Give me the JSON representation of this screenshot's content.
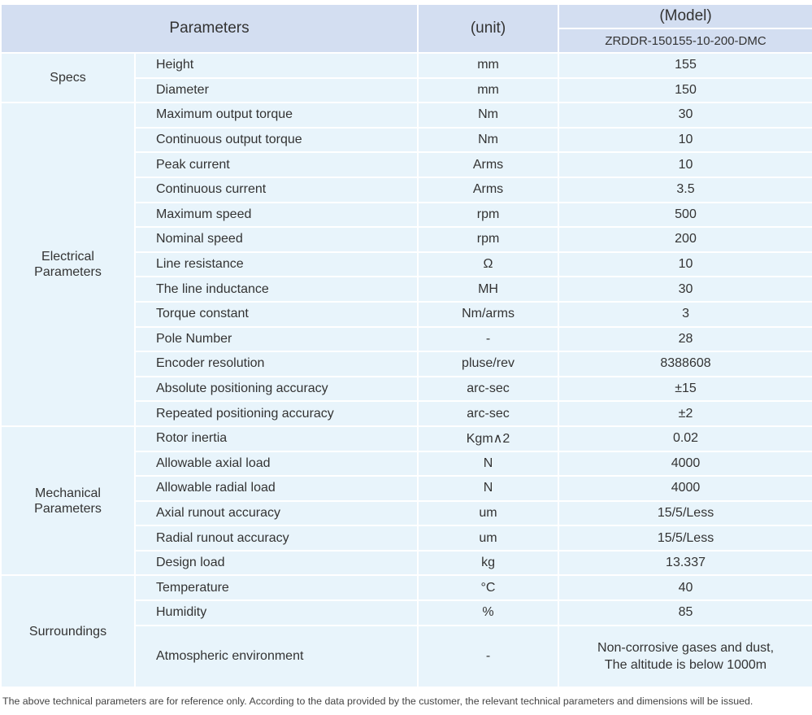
{
  "header": {
    "parameters": "Parameters",
    "unit": "(unit)",
    "model": "(Model)",
    "model_name": "ZRDDR-150155-10-200-DMC"
  },
  "groups": [
    {
      "name": "Specs",
      "rows": [
        {
          "parameter": "Height",
          "unit": "mm",
          "value": "155"
        },
        {
          "parameter": "Diameter",
          "unit": "mm",
          "value": "150"
        }
      ]
    },
    {
      "name": "Electrical Parameters",
      "rows": [
        {
          "parameter": "Maximum output torque",
          "unit": "Nm",
          "value": "30"
        },
        {
          "parameter": "Continuous output torque",
          "unit": "Nm",
          "value": "10"
        },
        {
          "parameter": "Peak current",
          "unit": "Arms",
          "value": "10"
        },
        {
          "parameter": "Continuous current",
          "unit": "Arms",
          "value": "3.5"
        },
        {
          "parameter": "Maximum speed",
          "unit": "rpm",
          "value": "500"
        },
        {
          "parameter": "Nominal speed",
          "unit": "rpm",
          "value": "200"
        },
        {
          "parameter": "Line resistance",
          "unit": "Ω",
          "value": "10"
        },
        {
          "parameter": "The line inductance",
          "unit": "MH",
          "value": "30"
        },
        {
          "parameter": "Torque constant",
          "unit": "Nm/arms",
          "value": "3"
        },
        {
          "parameter": "Pole Number",
          "unit": "-",
          "value": "28"
        },
        {
          "parameter": "Encoder resolution",
          "unit": "pluse/rev",
          "value": "8388608"
        },
        {
          "parameter": "Absolute positioning accuracy",
          "unit": "arc-sec",
          "value": "±15"
        },
        {
          "parameter": "Repeated positioning accuracy",
          "unit": "arc-sec",
          "value": "±2"
        }
      ]
    },
    {
      "name": "Mechanical Parameters",
      "rows": [
        {
          "parameter": "Rotor inertia",
          "unit": "Kgm∧2",
          "value": "0.02"
        },
        {
          "parameter": "Allowable axial load",
          "unit": "N",
          "value": "4000"
        },
        {
          "parameter": "Allowable radial load",
          "unit": "N",
          "value": "4000"
        },
        {
          "parameter": "Axial runout accuracy",
          "unit": "um",
          "value": "15/5/Less"
        },
        {
          "parameter": "Radial runout accuracy",
          "unit": "um",
          "value": "15/5/Less"
        },
        {
          "parameter": "Design load",
          "unit": "kg",
          "value": "13.337"
        }
      ]
    },
    {
      "name": "Surroundings",
      "rows": [
        {
          "parameter": "Temperature",
          "unit": "°C",
          "value": "40"
        },
        {
          "parameter": "Humidity",
          "unit": "%",
          "value": "85"
        },
        {
          "parameter": "Atmospheric environment",
          "unit": "-",
          "value": "Non-corrosive gases and dust,\nThe altitude is below 1000m"
        }
      ]
    }
  ],
  "footnote": "The above technical parameters are for reference only. According to the data provided by the customer, the relevant technical parameters and dimensions will be issued."
}
